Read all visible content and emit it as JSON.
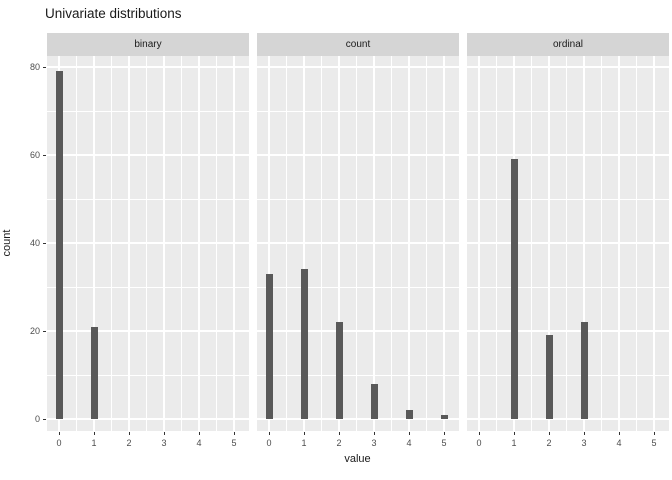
{
  "title": "Univariate distributions",
  "chart_data": {
    "type": "bar",
    "title": "Univariate distributions",
    "xlabel": "value",
    "ylabel": "count",
    "facet_variable_levels": [
      "binary",
      "count",
      "ordinal"
    ],
    "facets": [
      {
        "label": "binary",
        "points": [
          {
            "x": 0,
            "count": 79
          },
          {
            "x": 1,
            "count": 21
          }
        ]
      },
      {
        "label": "count",
        "points": [
          {
            "x": 0,
            "count": 33
          },
          {
            "x": 1,
            "count": 34
          },
          {
            "x": 2,
            "count": 22
          },
          {
            "x": 3,
            "count": 8
          },
          {
            "x": 4,
            "count": 2
          },
          {
            "x": 5,
            "count": 1
          }
        ]
      },
      {
        "label": "ordinal",
        "points": [
          {
            "x": 1,
            "count": 59
          },
          {
            "x": 2,
            "count": 19
          },
          {
            "x": 3,
            "count": 22
          }
        ]
      }
    ],
    "x_ticks": [
      0,
      1,
      2,
      3,
      4,
      5
    ],
    "y_ticks": [
      0,
      20,
      40,
      60,
      80
    ],
    "y_minor_ticks": [
      10,
      30,
      50,
      70
    ],
    "x_minor_ticks": [
      0.5,
      1.5,
      2.5,
      3.5,
      4.5
    ],
    "xlim": [
      -0.35,
      5.45
    ],
    "ylim": [
      0,
      82
    ],
    "grid": true,
    "legend": "none",
    "colors": {
      "bar": "#595959",
      "panel_bg": "#EBEBEB",
      "strip_bg": "#D5D5D5",
      "grid": "#FFFFFF",
      "axis_text": "#4D4D4D",
      "text": "#1A1A1A",
      "tick": "#333333"
    }
  }
}
